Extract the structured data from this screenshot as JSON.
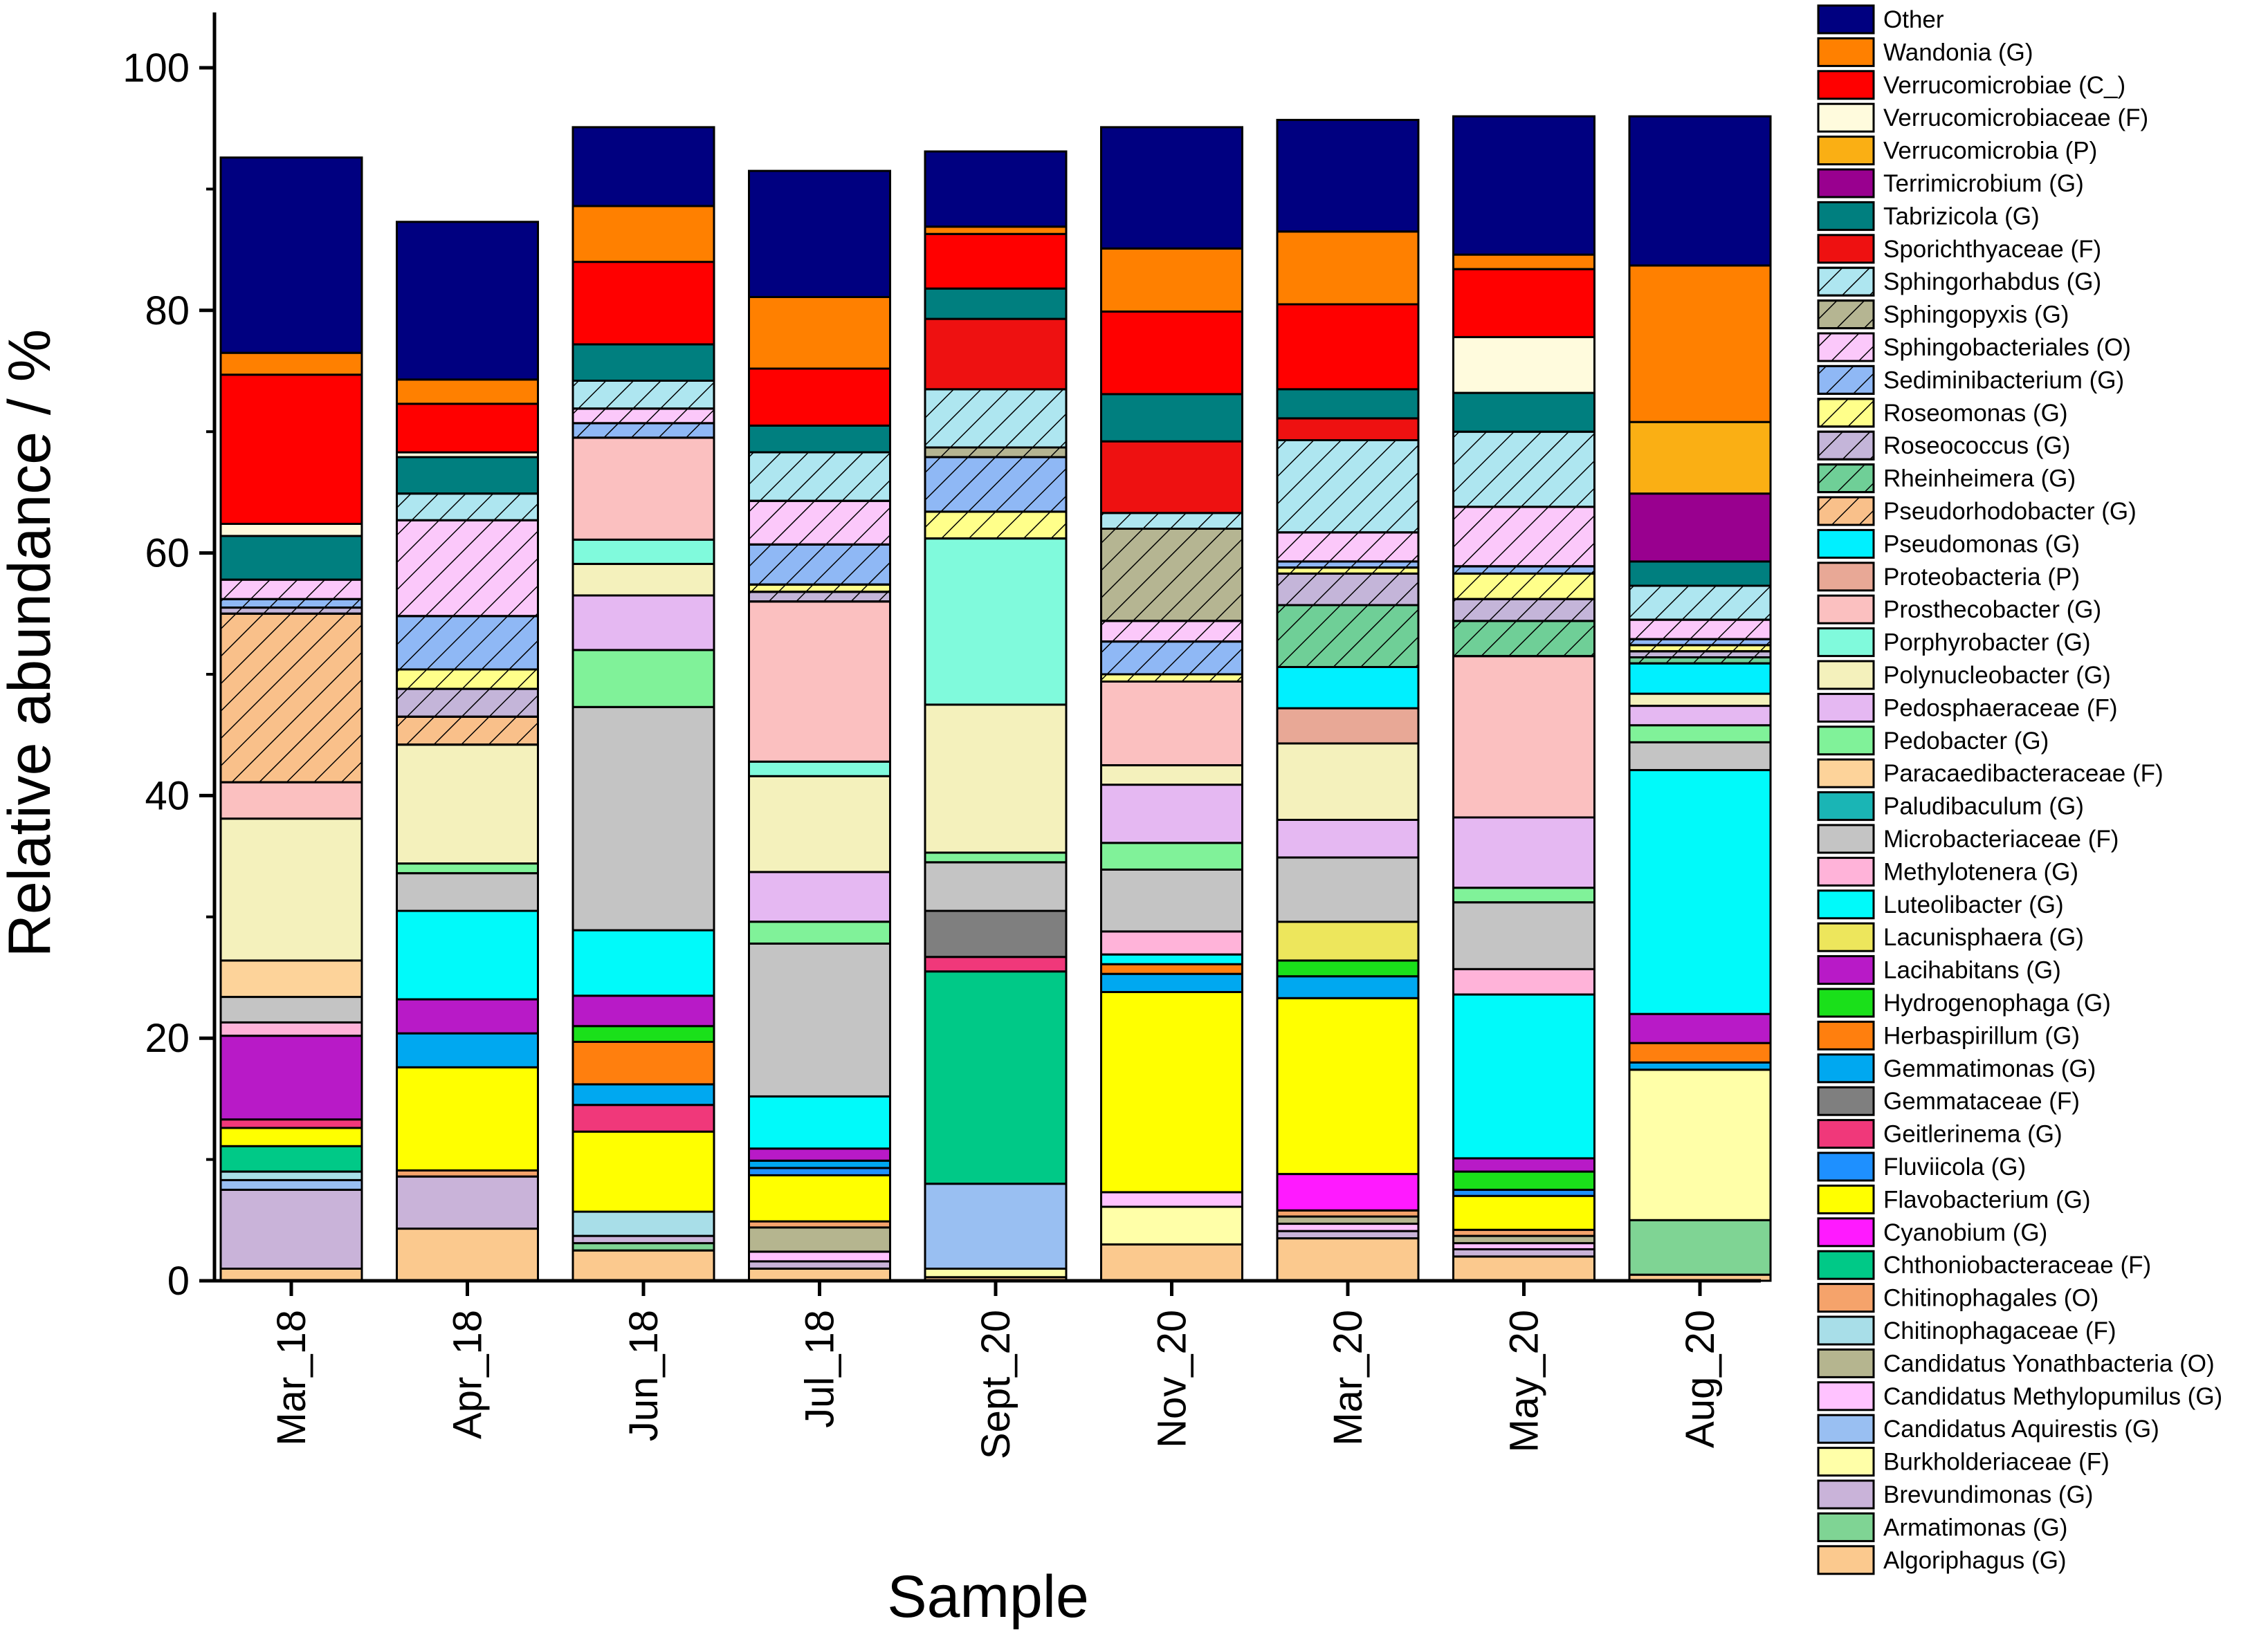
{
  "chart_data": {
    "type": "bar",
    "stacked": true,
    "title": "",
    "xlabel": "Sample",
    "ylabel": "Relative abundance / %",
    "ylim": [
      0,
      105
    ],
    "yticks": [
      0,
      20,
      40,
      60,
      80,
      100
    ],
    "categories": [
      "Mar_18",
      "Apr_18",
      "Jun_18",
      "Jul_18",
      "Sept_20",
      "Nov_20",
      "Mar_20",
      "May_20",
      "Aug_20"
    ],
    "legend_position": "right",
    "series": [
      {
        "name": "Algoriphagus (G)",
        "color": "#FBC98E",
        "hatch": false,
        "values": [
          1.0,
          4.3,
          2.5,
          1.0,
          0.3,
          3.0,
          3.5,
          2.0,
          0.5
        ]
      },
      {
        "name": "Armatimonas (G)",
        "color": "#7FD494",
        "hatch": false,
        "values": [
          0,
          0,
          0.6,
          0,
          0,
          0,
          0,
          0,
          4.5
        ]
      },
      {
        "name": "Brevundimonas (G)",
        "color": "#C9B3D9",
        "hatch": false,
        "values": [
          6.5,
          4.3,
          0.6,
          0.6,
          0,
          0,
          0.6,
          0.6,
          0
        ]
      },
      {
        "name": "Burkholderiaceae (F)",
        "color": "#FFFFA8",
        "hatch": false,
        "values": [
          0,
          0,
          0,
          0,
          0.7,
          3.1,
          0,
          0,
          12.4
        ]
      },
      {
        "name": "Candidatus Aquirestis (G)",
        "color": "#99BFF2",
        "hatch": false,
        "values": [
          0.8,
          0,
          0,
          0,
          7.0,
          0,
          0,
          0,
          0
        ]
      },
      {
        "name": "Candidatus Methylopumilus (G)",
        "color": "#FFC2FF",
        "hatch": false,
        "values": [
          0,
          0,
          0,
          0.8,
          0,
          1.2,
          0.6,
          0.5,
          0
        ]
      },
      {
        "name": "Candidatus Yonathbacteria (O)",
        "color": "#B5B58F",
        "hatch": false,
        "values": [
          0,
          0,
          0,
          2.0,
          0,
          0,
          0.6,
          0.6,
          0
        ]
      },
      {
        "name": "Chitinophagaceae (F)",
        "color": "#A8DEE8",
        "hatch": false,
        "values": [
          0.7,
          0,
          2.0,
          0,
          0,
          0,
          0,
          0,
          0
        ]
      },
      {
        "name": "Chitinophagales (O)",
        "color": "#F5A36B",
        "hatch": false,
        "values": [
          0,
          0.5,
          0,
          0.5,
          0,
          0,
          0.5,
          0.5,
          0
        ]
      },
      {
        "name": "Chthoniobacteraceae (F)",
        "color": "#00C987",
        "hatch": false,
        "values": [
          2.1,
          0,
          0,
          0,
          17.5,
          0,
          0,
          0,
          0
        ]
      },
      {
        "name": "Cyanobium (G)",
        "color": "#FF1AFF",
        "hatch": false,
        "values": [
          0,
          0,
          0,
          0,
          0,
          0,
          3.0,
          0,
          0
        ]
      },
      {
        "name": "Flavobacterium (G)",
        "color": "#FFFF00",
        "hatch": false,
        "values": [
          1.5,
          8.5,
          6.6,
          3.8,
          0,
          16.5,
          14.5,
          2.8,
          0
        ]
      },
      {
        "name": "Fluviicola (G)",
        "color": "#1E90FF",
        "hatch": false,
        "values": [
          0,
          0,
          0,
          0.6,
          0,
          0,
          0,
          0.5,
          0
        ]
      },
      {
        "name": "Geitlerinema (G)",
        "color": "#F0387A",
        "hatch": false,
        "values": [
          0.7,
          0,
          2.2,
          0,
          1.2,
          0,
          0,
          0,
          0
        ]
      },
      {
        "name": "Gemmataceae (F)",
        "color": "#7F7F7F",
        "hatch": false,
        "values": [
          0,
          0,
          0,
          0,
          3.8,
          0,
          0,
          0,
          0
        ]
      },
      {
        "name": "Gemmatimonas (G)",
        "color": "#00A8F0",
        "hatch": false,
        "values": [
          0,
          2.8,
          1.7,
          0.6,
          0,
          1.5,
          1.8,
          0,
          0.6
        ]
      },
      {
        "name": "Herbaspirillum (G)",
        "color": "#FF7F0E",
        "hatch": false,
        "values": [
          0,
          0,
          3.5,
          0,
          0,
          0.8,
          0,
          0,
          1.6
        ]
      },
      {
        "name": "Hydrogenophaga (G)",
        "color": "#1AE01A",
        "hatch": false,
        "values": [
          0,
          0,
          1.3,
          0,
          0,
          0,
          1.3,
          1.5,
          0
        ]
      },
      {
        "name": "Lacihabitans (G)",
        "color": "#B81AC7",
        "hatch": false,
        "values": [
          6.9,
          2.8,
          2.5,
          1.0,
          0,
          0,
          0,
          1.1,
          2.4
        ]
      },
      {
        "name": "Lacunisphaera (G)",
        "color": "#EDE65C",
        "hatch": false,
        "values": [
          0,
          0,
          0,
          0,
          0,
          0,
          3.2,
          0,
          0
        ]
      },
      {
        "name": "Luteolibacter (G)",
        "color": "#00FAFA",
        "hatch": false,
        "values": [
          0,
          7.3,
          5.4,
          4.3,
          0,
          0.8,
          0,
          13.5,
          20.1
        ]
      },
      {
        "name": "Methylotenera (G)",
        "color": "#FFB3D9",
        "hatch": false,
        "values": [
          1.1,
          0,
          0,
          0,
          0,
          1.9,
          0,
          2.1,
          0
        ]
      },
      {
        "name": "Microbacteriaceae (F)",
        "color": "#C4C4C4",
        "hatch": false,
        "values": [
          2.1,
          3.1,
          18.4,
          12.6,
          4.0,
          5.1,
          5.3,
          5.5,
          2.3
        ]
      },
      {
        "name": "Paludibaculum (G)",
        "color": "#1AB5B5",
        "hatch": false,
        "values": [
          0,
          0,
          0,
          0,
          0,
          0,
          0,
          0,
          0
        ]
      },
      {
        "name": "Paracaedibacteraceae (F)",
        "color": "#FDD39A",
        "hatch": false,
        "values": [
          3.0,
          0,
          0,
          0,
          0,
          0,
          0,
          0,
          0
        ]
      },
      {
        "name": "Pedobacter (G)",
        "color": "#80F299",
        "hatch": false,
        "values": [
          0,
          0.8,
          4.7,
          1.8,
          0.8,
          2.2,
          0,
          1.2,
          1.4
        ]
      },
      {
        "name": "Pedosphaeraceae (F)",
        "color": "#E5B8F2",
        "hatch": false,
        "values": [
          0,
          0,
          4.5,
          4.1,
          0,
          4.8,
          3.1,
          5.8,
          1.6
        ]
      },
      {
        "name": "Polynucleobacter (G)",
        "color": "#F4F1BC",
        "hatch": false,
        "values": [
          11.7,
          9.8,
          2.6,
          7.9,
          12.2,
          1.6,
          6.3,
          0,
          1.0
        ]
      },
      {
        "name": "Porphyrobacter (G)",
        "color": "#80FADC",
        "hatch": false,
        "values": [
          0,
          0,
          2.0,
          1.2,
          13.7,
          0,
          0,
          0,
          0
        ]
      },
      {
        "name": "Prosthecobacter (G)",
        "color": "#FBC0C0",
        "hatch": false,
        "values": [
          3.0,
          0,
          8.4,
          13.2,
          0,
          6.9,
          0,
          13.3,
          0
        ]
      },
      {
        "name": "Proteobacteria (P)",
        "color": "#E8A896",
        "hatch": false,
        "values": [
          0,
          0,
          0,
          0,
          0,
          0,
          2.9,
          0,
          0
        ]
      },
      {
        "name": "Pseudomonas (G)",
        "color": "#00F0FF",
        "hatch": false,
        "values": [
          0,
          0,
          0,
          0,
          0,
          0,
          3.4,
          0,
          2.5
        ]
      },
      {
        "name": "Pseudorhodobacter (G)",
        "color": "#F9C08A",
        "hatch": true,
        "values": [
          13.9,
          2.3,
          0,
          0,
          0,
          0,
          0,
          0,
          0
        ]
      },
      {
        "name": "Rheinheimera (G)",
        "color": "#6FCF97",
        "hatch": true,
        "values": [
          0,
          0,
          0,
          0,
          0,
          0,
          5.1,
          2.9,
          0.5
        ]
      },
      {
        "name": "Roseococcus (G)",
        "color": "#C4B5D9",
        "hatch": true,
        "values": [
          0.5,
          2.3,
          0,
          0.8,
          0,
          0,
          2.6,
          1.8,
          0.5
        ]
      },
      {
        "name": "Roseomonas (G)",
        "color": "#FFFF8A",
        "hatch": true,
        "values": [
          0,
          1.6,
          0,
          0.6,
          2.2,
          0.6,
          0.5,
          2.1,
          0.5
        ]
      },
      {
        "name": "Sediminibacterium (G)",
        "color": "#8FB8F5",
        "hatch": true,
        "values": [
          0.7,
          4.4,
          1.2,
          3.3,
          4.5,
          2.7,
          0.5,
          0.6,
          0.5
        ]
      },
      {
        "name": "Sphingobacteriales (O)",
        "color": "#FBC8FA",
        "hatch": true,
        "values": [
          1.6,
          7.9,
          1.2,
          3.6,
          0,
          1.7,
          2.4,
          4.9,
          1.6
        ]
      },
      {
        "name": "Sphingopyxis (G)",
        "color": "#B5B592",
        "hatch": true,
        "values": [
          0,
          0,
          0,
          0,
          0.8,
          7.6,
          0,
          0,
          0
        ]
      },
      {
        "name": "Sphingorhabdus (G)",
        "color": "#AEE6F0",
        "hatch": true,
        "values": [
          0,
          2.2,
          2.3,
          4.0,
          4.8,
          1.3,
          7.6,
          6.2,
          2.8
        ]
      },
      {
        "name": "Sporichthyaceae (F)",
        "color": "#EE1111",
        "hatch": false,
        "values": [
          0,
          0,
          0,
          0,
          5.8,
          5.9,
          1.8,
          0,
          0
        ]
      },
      {
        "name": "Tabrizicola (G)",
        "color": "#007F7F",
        "hatch": false,
        "values": [
          3.6,
          3.0,
          3.0,
          2.2,
          2.5,
          3.9,
          2.4,
          3.2,
          2.0
        ]
      },
      {
        "name": "Terrimicrobium (G)",
        "color": "#99008F",
        "hatch": false,
        "values": [
          0,
          0,
          0,
          0,
          0,
          0,
          0,
          0,
          5.6
        ]
      },
      {
        "name": "Verrucomicrobia (P)",
        "color": "#FAAF14",
        "hatch": false,
        "values": [
          0,
          0,
          0,
          0,
          0,
          0,
          0,
          0,
          5.9
        ]
      },
      {
        "name": "Verrucomicrobiaceae (F)",
        "color": "#FFFBDD",
        "hatch": false,
        "values": [
          1.0,
          0.4,
          0,
          0,
          0,
          0,
          0,
          4.6,
          0
        ]
      },
      {
        "name": "Verrucomicrobiae (C_)",
        "color": "#FF0000",
        "hatch": false,
        "values": [
          12.3,
          4.0,
          6.8,
          4.7,
          4.5,
          6.8,
          7.0,
          5.6,
          0
        ]
      },
      {
        "name": "Wandonia (G)",
        "color": "#FF8000",
        "hatch": false,
        "values": [
          1.8,
          2.0,
          4.6,
          5.9,
          0.6,
          5.2,
          6.0,
          1.2,
          12.9
        ]
      },
      {
        "name": "Other",
        "color": "#000080",
        "hatch": false,
        "values": [
          16.1,
          13.0,
          6.5,
          10.4,
          6.2,
          10.0,
          9.2,
          11.4,
          12.3
        ]
      }
    ]
  }
}
